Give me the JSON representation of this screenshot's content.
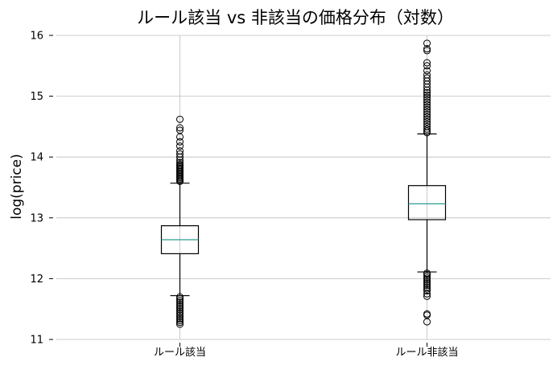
{
  "chart_data": {
    "type": "boxplot",
    "title": "ルール該当 vs 非該当の価格分布（対数）",
    "xlabel": "",
    "ylabel": "log(price)",
    "ylim": [
      11,
      16
    ],
    "yticks": [
      11,
      12,
      13,
      14,
      15,
      16
    ],
    "grid": true,
    "categories": [
      "ルール該当",
      "ルール非該当"
    ],
    "boxes": [
      {
        "category": "ルール該当",
        "whisker_low": 11.72,
        "q1": 12.41,
        "median": 12.64,
        "q3": 12.87,
        "whisker_high": 13.57,
        "fliers_low": [
          11.25,
          11.28,
          11.31,
          11.34,
          11.37,
          11.4,
          11.43,
          11.46,
          11.49,
          11.52,
          11.55,
          11.58,
          11.61,
          11.64,
          11.67,
          11.7
        ],
        "fliers_high": [
          13.6,
          13.62,
          13.64,
          13.66,
          13.68,
          13.7,
          13.72,
          13.74,
          13.76,
          13.78,
          13.8,
          13.82,
          13.84,
          13.86,
          13.88,
          13.91,
          13.95,
          14.0,
          14.05,
          14.1,
          14.18,
          14.25,
          14.33,
          14.44,
          14.48,
          14.62
        ]
      },
      {
        "category": "ルール非該当",
        "whisker_low": 12.11,
        "q1": 12.97,
        "median": 13.23,
        "q3": 13.53,
        "whisker_high": 14.38,
        "fliers_low": [
          11.29,
          11.4,
          11.42,
          11.71,
          11.75,
          11.8,
          11.83,
          11.86,
          11.89,
          11.92,
          11.95,
          11.98,
          12.01,
          12.04,
          12.07,
          12.09
        ],
        "fliers_high": [
          14.4,
          14.43,
          14.46,
          14.5,
          14.54,
          14.58,
          14.62,
          14.66,
          14.7,
          14.74,
          14.78,
          14.82,
          14.86,
          14.9,
          14.94,
          14.98,
          15.02,
          15.06,
          15.1,
          15.15,
          15.2,
          15.25,
          15.3,
          15.35,
          15.42,
          15.5,
          15.55,
          15.75,
          15.78,
          15.87
        ]
      }
    ],
    "colors": {
      "box": "#000000",
      "median": "#2a9d8f",
      "grid": "#bdbdbd",
      "flier": "#000000"
    }
  }
}
